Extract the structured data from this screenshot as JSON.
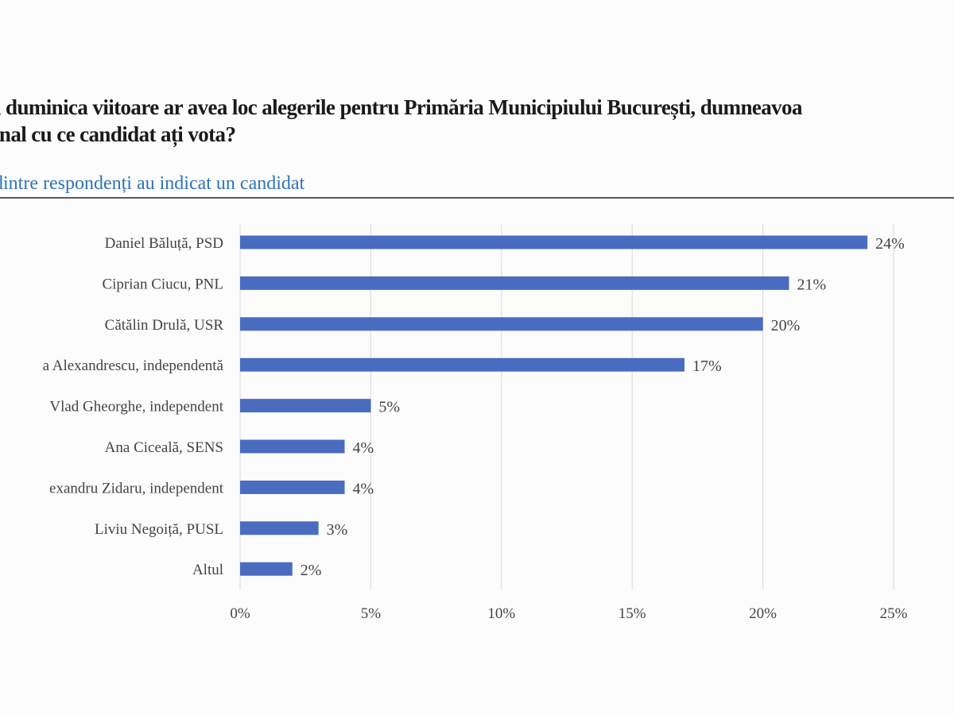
{
  "question": {
    "line1": "ă duminica viitoare ar avea loc alegerile pentru Primăria Municipiului București, dumneavoa",
    "line2": "onal cu ce candidat ați vota?"
  },
  "subtitle": "dintre respondenți au indicat un candidat",
  "colors": {
    "bar": "#4a6cc0",
    "subtitle": "#2e74b5",
    "grid": "#d9d9d9",
    "rule": "#5a5a5a"
  },
  "chart_data": {
    "type": "bar",
    "orientation": "horizontal",
    "categories": [
      "Daniel Băluță, PSD",
      "Ciprian Ciucu, PNL",
      "Cătălin Drulă, USR",
      "a Alexandrescu, independentă",
      "Vlad Gheorghe, independent",
      "Ana Ciceală, SENS",
      "exandru Zidaru, independent",
      "Liviu Negoiță, PUSL",
      "Altul"
    ],
    "values": [
      24,
      21,
      20,
      17,
      5,
      4,
      4,
      3,
      2
    ],
    "value_labels": [
      "24%",
      "21%",
      "20%",
      "17%",
      "5%",
      "4%",
      "4%",
      "3%",
      "2%"
    ],
    "xticks": [
      "0%",
      "5%",
      "10%",
      "15%",
      "20%",
      "25%"
    ],
    "xlim": [
      0,
      25
    ],
    "grid": "vertical",
    "legend": "none"
  }
}
